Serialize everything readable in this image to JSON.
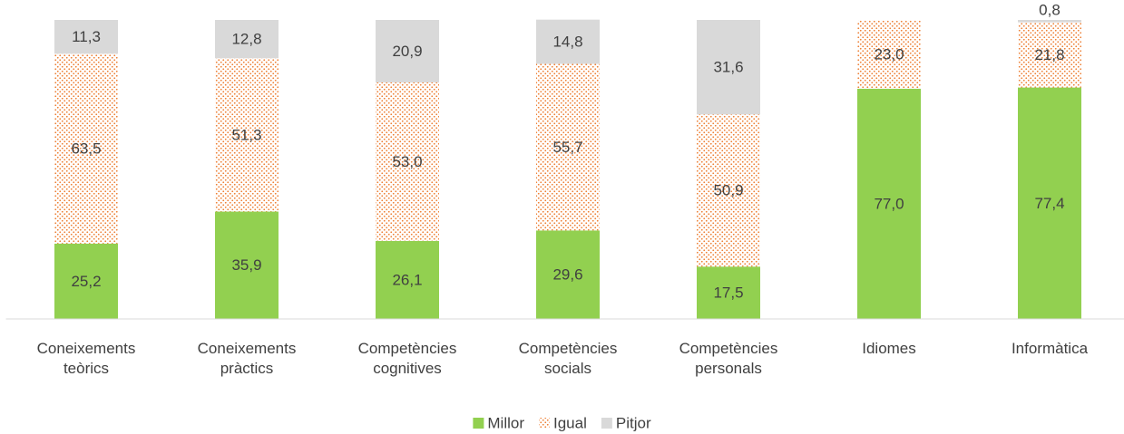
{
  "chart_data": {
    "type": "stacked_bar",
    "categories": [
      "Coneixements teòrics",
      "Coneixements pràctics",
      "Competències cognitives",
      "Competències socials",
      "Competències personals",
      "Idiomes",
      "Informàtica"
    ],
    "ylim": [
      0,
      100
    ],
    "legend": "bottom",
    "series": [
      {
        "name": "Millor",
        "color": "#92d050",
        "values": [
          25.2,
          35.9,
          26.1,
          29.6,
          17.5,
          77.0,
          77.4
        ],
        "value_labels": [
          "25,2",
          "35,9",
          "26,1",
          "29,6",
          "17,5",
          "77,0",
          "77,4"
        ]
      },
      {
        "name": "Igual",
        "color": "#ed7d31",
        "values": [
          63.5,
          51.3,
          53.0,
          55.7,
          50.9,
          23.0,
          21.8
        ],
        "value_labels": [
          "63,5",
          "51,3",
          "53,0",
          "55,7",
          "50,9",
          "23,0",
          "21,8"
        ]
      },
      {
        "name": "Pitjor",
        "color": "#d9d9d9",
        "values": [
          11.3,
          12.8,
          20.9,
          14.8,
          31.6,
          0.0,
          0.8
        ],
        "value_labels": [
          "11,3",
          "12,8",
          "20,9",
          "14,8",
          "31,6",
          null,
          "0,8"
        ]
      }
    ]
  }
}
